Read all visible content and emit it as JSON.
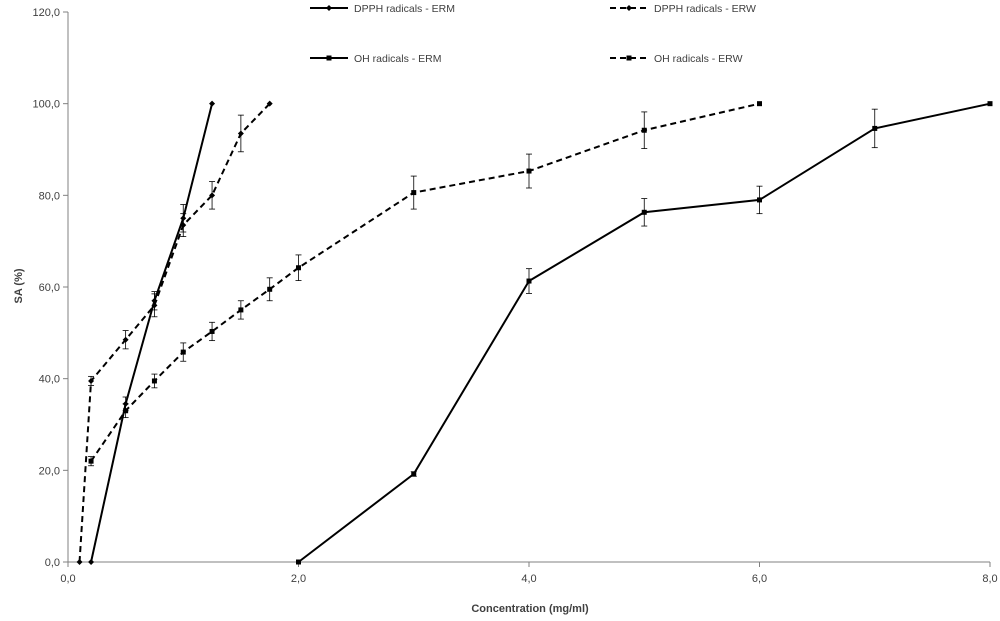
{
  "chart_data": {
    "type": "line",
    "title": "",
    "xlabel": "Concentration (mg/ml)",
    "ylabel": "SA (%)",
    "xlim": [
      0,
      8
    ],
    "ylim": [
      0,
      120
    ],
    "x_ticks": [
      "0,0",
      "2,0",
      "4,0",
      "6,0",
      "8,0"
    ],
    "y_ticks": [
      "0,0",
      "20,0",
      "40,0",
      "60,0",
      "80,0",
      "100,0",
      "120,0"
    ],
    "grid": false,
    "legend_position": "top",
    "series": [
      {
        "name": "DPPH radicals - ERM",
        "style": "solid",
        "marker": "diamond",
        "color": "#000000",
        "points": [
          {
            "x": 0.2,
            "y": 0,
            "err": 0
          },
          {
            "x": 0.5,
            "y": 34.5,
            "err": 1.5
          },
          {
            "x": 0.75,
            "y": 57,
            "err": 2
          },
          {
            "x": 1.0,
            "y": 75,
            "err": 3
          },
          {
            "x": 1.25,
            "y": 100,
            "err": 0
          }
        ]
      },
      {
        "name": "DPPH radicals - ERW",
        "style": "dashed",
        "marker": "diamond",
        "color": "#000000",
        "points": [
          {
            "x": 0.1,
            "y": 0,
            "err": 0
          },
          {
            "x": 0.2,
            "y": 39.5,
            "err": 1
          },
          {
            "x": 0.5,
            "y": 48.5,
            "err": 2
          },
          {
            "x": 0.75,
            "y": 56,
            "err": 2.5
          },
          {
            "x": 1.0,
            "y": 73.5,
            "err": 2.5
          },
          {
            "x": 1.25,
            "y": 80,
            "err": 3
          },
          {
            "x": 1.5,
            "y": 93.5,
            "err": 4
          },
          {
            "x": 1.75,
            "y": 100,
            "err": 0
          }
        ]
      },
      {
        "name": "OH radicals - ERM",
        "style": "solid",
        "marker": "square",
        "color": "#000000",
        "points": [
          {
            "x": 2.0,
            "y": 0,
            "err": 0
          },
          {
            "x": 3.0,
            "y": 19.2,
            "err": 0.5
          },
          {
            "x": 4.0,
            "y": 61.3,
            "err": 2.7
          },
          {
            "x": 5.0,
            "y": 76.3,
            "err": 3
          },
          {
            "x": 6.0,
            "y": 79,
            "err": 3
          },
          {
            "x": 7.0,
            "y": 94.6,
            "err": 4.2
          },
          {
            "x": 8.0,
            "y": 100,
            "err": 0
          }
        ]
      },
      {
        "name": "OH radicals - ERW",
        "style": "dashed",
        "marker": "square",
        "color": "#000000",
        "points": [
          {
            "x": 0.2,
            "y": 22,
            "err": 1
          },
          {
            "x": 0.5,
            "y": 33,
            "err": 1.5
          },
          {
            "x": 0.75,
            "y": 39.5,
            "err": 1.5
          },
          {
            "x": 1.0,
            "y": 45.8,
            "err": 2
          },
          {
            "x": 1.25,
            "y": 50.3,
            "err": 2
          },
          {
            "x": 1.5,
            "y": 55,
            "err": 2
          },
          {
            "x": 1.75,
            "y": 59.5,
            "err": 2.5
          },
          {
            "x": 2.0,
            "y": 64.2,
            "err": 2.8
          },
          {
            "x": 3.0,
            "y": 80.6,
            "err": 3.6
          },
          {
            "x": 4.0,
            "y": 85.3,
            "err": 3.7
          },
          {
            "x": 5.0,
            "y": 94.2,
            "err": 4
          },
          {
            "x": 6.0,
            "y": 100,
            "err": 0
          }
        ]
      }
    ]
  }
}
